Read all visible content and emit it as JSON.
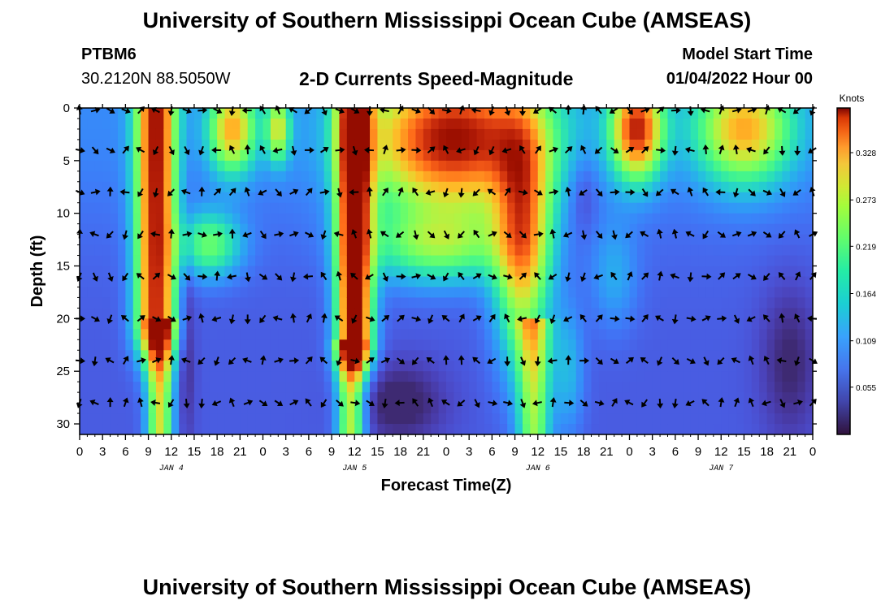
{
  "header": {
    "title": "University of Southern Mississippi Ocean Cube (AMSEAS)",
    "station": "PTBM6",
    "coords": "30.2120N  88.5050W",
    "subtitle": "2-D Currents Speed-Magnitude",
    "model_start_label": "Model Start Time",
    "model_start_value": "01/04/2022 Hour 00"
  },
  "footer": {
    "title": "University of Southern Mississippi Ocean Cube (AMSEAS)"
  },
  "chart_data": {
    "type": "heatmap",
    "title": "2-D Currents Speed-Magnitude",
    "xlabel": "Forecast Time(Z)",
    "ylabel": "Depth (ft)",
    "x_ticks": [
      "0",
      "3",
      "6",
      "9",
      "12",
      "15",
      "18",
      "21",
      "0",
      "3",
      "6",
      "9",
      "12",
      "15",
      "18",
      "21",
      "0",
      "3",
      "6",
      "9",
      "12",
      "15",
      "18",
      "21",
      "0",
      "3",
      "6",
      "9",
      "12",
      "15",
      "18",
      "21",
      "0"
    ],
    "x_range_hours": [
      0,
      96
    ],
    "date_labels": [
      {
        "hour": 12,
        "label": "JAN 4"
      },
      {
        "hour": 36,
        "label": "JAN 5"
      },
      {
        "hour": 60,
        "label": "JAN 6"
      },
      {
        "hour": 84,
        "label": "JAN 7"
      }
    ],
    "y_ticks": [
      "0",
      "5",
      "10",
      "15",
      "20",
      "25",
      "30"
    ],
    "y_range_ft": [
      0,
      31
    ],
    "colorbar": {
      "unit": "Knots",
      "range": [
        0,
        0.38
      ],
      "labels": [
        "0.328",
        "0.273",
        "0.219",
        "0.164",
        "0.109",
        "0.055"
      ],
      "values": [
        0.328,
        0.273,
        0.219,
        0.164,
        0.109,
        0.055
      ]
    },
    "vector_depths_ft": [
      0,
      4,
      8,
      12,
      16,
      20,
      24,
      28
    ]
  }
}
